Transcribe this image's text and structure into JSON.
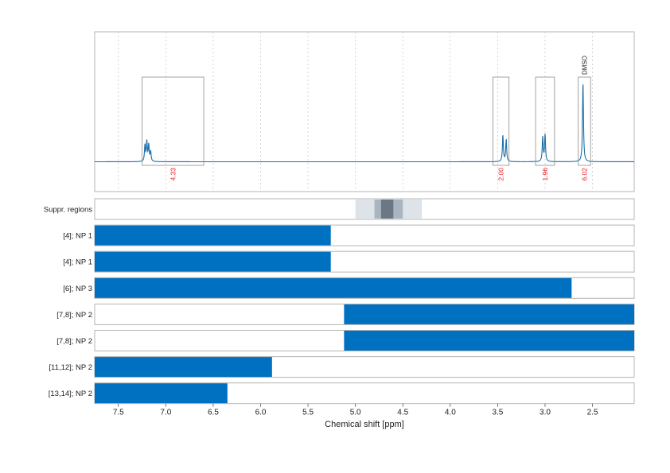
{
  "chart_data": {
    "type": "nmr-spectrum",
    "x_axis": {
      "label": "Chemical shift [ppm]",
      "range": [
        7.75,
        2.06
      ],
      "reversed": true,
      "ticks": [
        "7.5",
        "7.0",
        "6.5",
        "6.0",
        "5.5",
        "5.0",
        "4.5",
        "4.0",
        "3.5",
        "3.0",
        "2.5"
      ],
      "tick_values": [
        7.5,
        7.0,
        6.5,
        6.0,
        5.5,
        5.0,
        4.5,
        4.0,
        3.5,
        3.0,
        2.5
      ]
    },
    "spectrum": {
      "color": "#1b6ea8",
      "peaks": [
        {
          "ppm": 7.22,
          "height": 0.2
        },
        {
          "ppm": 7.2,
          "height": 0.24
        },
        {
          "ppm": 7.18,
          "height": 0.2
        },
        {
          "ppm": 7.16,
          "height": 0.12
        },
        {
          "ppm": 3.445,
          "height": 0.32
        },
        {
          "ppm": 3.41,
          "height": 0.27
        },
        {
          "ppm": 3.025,
          "height": 0.3
        },
        {
          "ppm": 3.0,
          "height": 0.33
        },
        {
          "ppm": 2.6,
          "height": 0.97
        }
      ]
    },
    "integrals": [
      {
        "start": 7.25,
        "end": 6.6,
        "label": "4.33"
      },
      {
        "start": 3.55,
        "end": 3.38,
        "label": "2.00"
      },
      {
        "start": 3.1,
        "end": 2.9,
        "label": "1.96"
      },
      {
        "start": 2.65,
        "end": 2.52,
        "label": "6.02",
        "annotation": "DMSO"
      }
    ],
    "suppressed_regions": {
      "label": "Suppr. regions",
      "bands": [
        {
          "start": 5.0,
          "end": 4.3,
          "color": "#dde3e9"
        },
        {
          "start": 4.8,
          "end": 4.5,
          "color": "#a9b6c2"
        },
        {
          "start": 4.73,
          "end": 4.6,
          "color": "#6b7884"
        }
      ]
    },
    "annotation_rows": [
      {
        "label": "[4]; NP 1",
        "start": 7.75,
        "end": 5.26
      },
      {
        "label": "[4]; NP 1",
        "start": 7.75,
        "end": 5.26
      },
      {
        "label": "[6]; NP 3",
        "start": 7.75,
        "end": 2.72
      },
      {
        "label": "[7,8]; NP 2",
        "start": 5.12,
        "end": 2.06
      },
      {
        "label": "[7,8]; NP 2",
        "start": 5.12,
        "end": 2.06
      },
      {
        "label": "[11,12]; NP 2",
        "start": 7.75,
        "end": 5.88
      },
      {
        "label": "[13,14]; NP 2",
        "start": 7.75,
        "end": 6.35
      }
    ],
    "bar_color": "#0070c0",
    "grid": "vertical dotted"
  }
}
